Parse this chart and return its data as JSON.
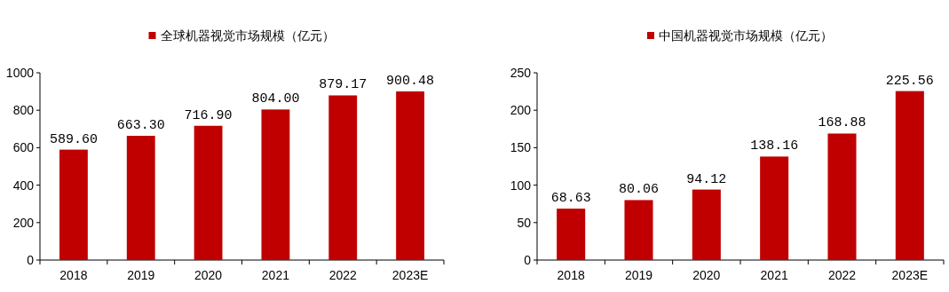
{
  "chart_data": [
    {
      "type": "bar",
      "categories": [
        "2018",
        "2019",
        "2020",
        "2021",
        "2022",
        "2023E"
      ],
      "series": [
        {
          "name": "全球机器视觉市场规模（亿元）",
          "color": "#c00000",
          "values": [
            589.6,
            663.3,
            716.9,
            804.0,
            879.17,
            900.48
          ]
        }
      ],
      "value_labels": [
        "589.60",
        "663.30",
        "716.90",
        "804.00",
        "879.17",
        "900.48"
      ],
      "ylim": [
        0,
        1000
      ],
      "yticks": [
        0,
        200,
        400,
        600,
        800,
        1000
      ],
      "legend": "top",
      "grid": false
    },
    {
      "type": "bar",
      "categories": [
        "2018",
        "2019",
        "2020",
        "2021",
        "2022",
        "2023E"
      ],
      "series": [
        {
          "name": "中国机器视觉市场规模（亿元）",
          "color": "#c00000",
          "values": [
            68.63,
            80.06,
            94.12,
            138.16,
            168.88,
            225.56
          ]
        }
      ],
      "value_labels": [
        "68.63",
        "80.06",
        "94.12",
        "138.16",
        "168.88",
        "225.56"
      ],
      "ylim": [
        0,
        250
      ],
      "yticks": [
        0,
        50,
        100,
        150,
        200,
        250
      ],
      "legend": "top",
      "grid": false
    }
  ]
}
